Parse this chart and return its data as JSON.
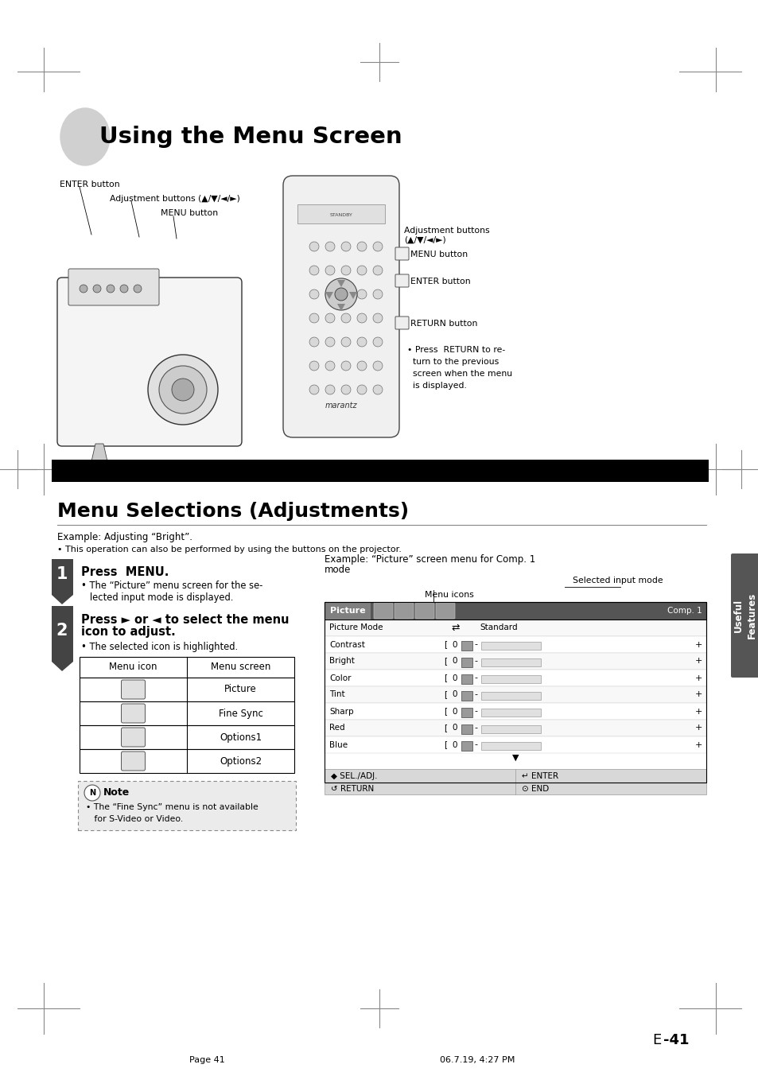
{
  "page_bg": "#ffffff",
  "title": "Using the Menu Screen",
  "section_title": "Menu Selections (Adjustments)",
  "example_text1": "Example: Adjusting “Bright”.",
  "example_text2": "• This operation can also be performed by using the buttons on the projector.",
  "step1_bold": "Press  MENU.",
  "step1_text1": "• The “Picture” menu screen for the se-",
  "step1_text2": "   lected input mode is displayed.",
  "step2_bold1": "Press ► or ◄ to select the menu",
  "step2_bold2": "icon to adjust.",
  "step2_text": "• The selected icon is highlighted.",
  "table_header1": "Menu icon",
  "table_header2": "Menu screen",
  "table_rows": [
    "Picture",
    "Fine Sync",
    "Options1",
    "Options2"
  ],
  "note_title": "Note",
  "note_text1": "• The “Fine Sync” menu is not available",
  "note_text2": "   for S-Video or Video.",
  "right_title1": "Example: “Picture” screen menu for Comp. 1",
  "right_title2": "mode",
  "right_selected": "Selected input mode",
  "right_menu_icons": "Menu icons",
  "menu_rows": [
    "Picture Mode",
    "Contrast",
    "Bright",
    "Color",
    "Tint",
    "Sharp",
    "Red",
    "Blue"
  ],
  "menu_vals": [
    "Standard",
    "0",
    "0",
    "0",
    "0",
    "0",
    "0",
    "0"
  ],
  "sel_adj": "◆ SEL./ADJ.",
  "enter_b": "↵ ENTER",
  "return_b": "↺ RETURN",
  "end_b": "⊙ END",
  "enter_label": "ENTER button",
  "adj_label": "Adjustment buttons (▲/▼/◄/►)",
  "menu_label": "MENU button",
  "right_adj_label": "Adjustment buttons",
  "right_adj_label2": "(▲/▼/◄/►)",
  "right_menu_label": "MENU button",
  "right_enter_label": "ENTER button",
  "right_return_label": "RETURN button",
  "return_note1": "• Press  RETURN to re-",
  "return_note2": "  turn to the previous",
  "return_note3": "  screen when the menu",
  "return_note4": "  is displayed.",
  "useful_line1": "Useful",
  "useful_line2": "Features",
  "page_num": "E -41",
  "page_footer_left": "Page 41",
  "page_footer_right": "06.7.19, 4:27 PM"
}
